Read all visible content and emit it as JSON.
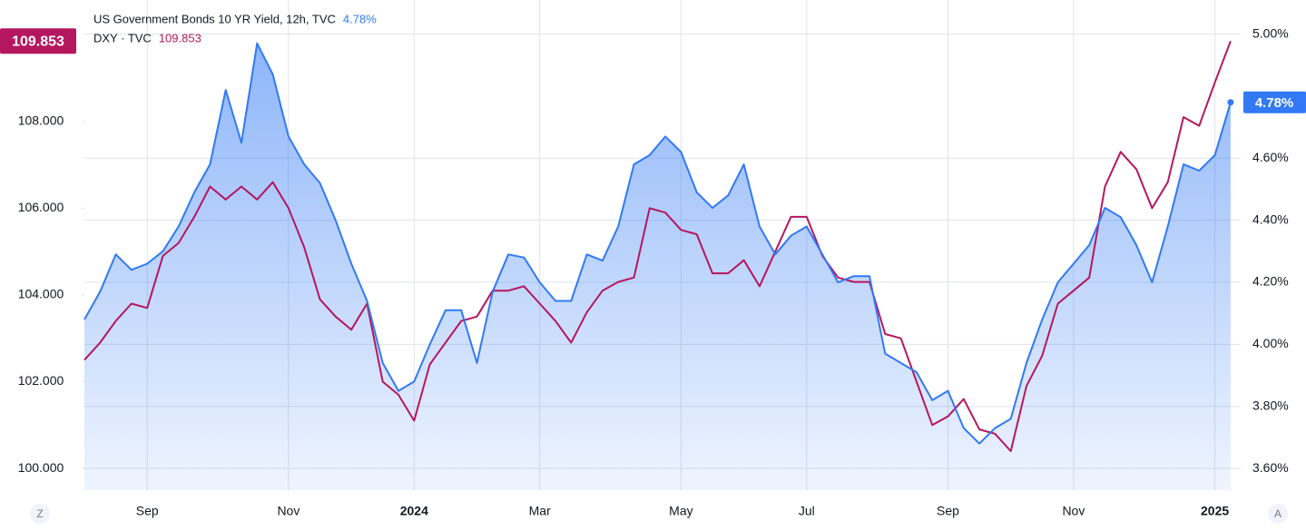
{
  "chart_data": {
    "type": "line",
    "categories": [
      null,
      null,
      null,
      null,
      "Sep",
      null,
      null,
      null,
      null,
      null,
      null,
      null,
      null,
      "Nov",
      null,
      null,
      null,
      null,
      null,
      null,
      null,
      "2024",
      null,
      null,
      null,
      null,
      null,
      null,
      null,
      "Mar",
      null,
      null,
      null,
      null,
      null,
      null,
      null,
      null,
      "May",
      null,
      null,
      null,
      null,
      null,
      null,
      null,
      "Jul",
      null,
      null,
      null,
      null,
      null,
      null,
      null,
      null,
      "Sep",
      null,
      null,
      null,
      null,
      null,
      null,
      null,
      "Nov",
      null,
      null,
      null,
      null,
      null,
      null,
      null,
      null,
      "2025",
      null
    ],
    "series": [
      {
        "name": "US Government Bonds 10 YR Yield, 12h, TVC",
        "color": "#3179f5",
        "axis": "y2",
        "last_value_label": "4.78%",
        "values": [
          4.08,
          4.17,
          4.29,
          4.24,
          4.26,
          4.3,
          4.38,
          4.49,
          4.58,
          4.82,
          4.65,
          4.97,
          4.87,
          4.67,
          4.58,
          4.52,
          4.4,
          4.26,
          4.14,
          3.94,
          3.85,
          3.88,
          4.0,
          4.11,
          4.11,
          3.94,
          4.17,
          4.29,
          4.28,
          4.2,
          4.14,
          4.14,
          4.29,
          4.27,
          4.38,
          4.58,
          4.61,
          4.67,
          4.62,
          4.49,
          4.44,
          4.48,
          4.58,
          4.38,
          4.29,
          4.35,
          4.38,
          4.29,
          4.2,
          4.22,
          4.22,
          3.97,
          3.94,
          3.91,
          3.82,
          3.85,
          3.73,
          3.68,
          3.73,
          3.76,
          3.94,
          4.08,
          4.2,
          4.26,
          4.32,
          4.44,
          4.41,
          4.32,
          4.2,
          4.38,
          4.58,
          4.56,
          4.61,
          4.78
        ]
      },
      {
        "name": "DXY · TVC",
        "color": "#b5175e",
        "axis": "y",
        "last_value_label": "109.853",
        "values": [
          102.5,
          102.9,
          103.4,
          103.8,
          103.7,
          104.9,
          105.2,
          105.8,
          106.5,
          106.2,
          106.5,
          106.2,
          106.6,
          106.0,
          105.1,
          103.9,
          103.5,
          103.2,
          103.8,
          102.0,
          101.7,
          101.1,
          102.4,
          102.9,
          103.4,
          103.5,
          104.1,
          104.1,
          104.2,
          103.8,
          103.4,
          102.9,
          103.6,
          104.1,
          104.3,
          104.4,
          106.0,
          105.9,
          105.5,
          105.4,
          104.5,
          104.5,
          104.8,
          104.2,
          105.0,
          105.8,
          105.8,
          104.9,
          104.4,
          104.3,
          104.3,
          103.1,
          103.0,
          102.0,
          101.0,
          101.2,
          101.6,
          100.9,
          100.8,
          100.4,
          101.9,
          102.6,
          103.8,
          104.1,
          104.4,
          106.5,
          107.3,
          106.9,
          106.0,
          106.6,
          108.1,
          107.9,
          108.9,
          109.853
        ]
      }
    ],
    "ylim": [
      99.5,
      110.8
    ],
    "yticks": [
      {
        "value": 100,
        "label": "100.000"
      },
      {
        "value": 102,
        "label": "102.000"
      },
      {
        "value": 104,
        "label": "104.000"
      },
      {
        "value": 106,
        "label": "106.000"
      },
      {
        "value": 108,
        "label": "108.000"
      }
    ],
    "y2lim": [
      3.53,
      5.11
    ],
    "y2ticks": [
      {
        "value": 3.6,
        "label": "3.60%"
      },
      {
        "value": 3.8,
        "label": "3.80%"
      },
      {
        "value": 4.0,
        "label": "4.00%"
      },
      {
        "value": 4.2,
        "label": "4.20%"
      },
      {
        "value": 4.4,
        "label": "4.40%"
      },
      {
        "value": 4.6,
        "label": "4.60%"
      },
      {
        "value": 5.0,
        "label": "5.00%"
      }
    ],
    "grid": true,
    "controls": {
      "left": "Z",
      "right": "A"
    }
  }
}
